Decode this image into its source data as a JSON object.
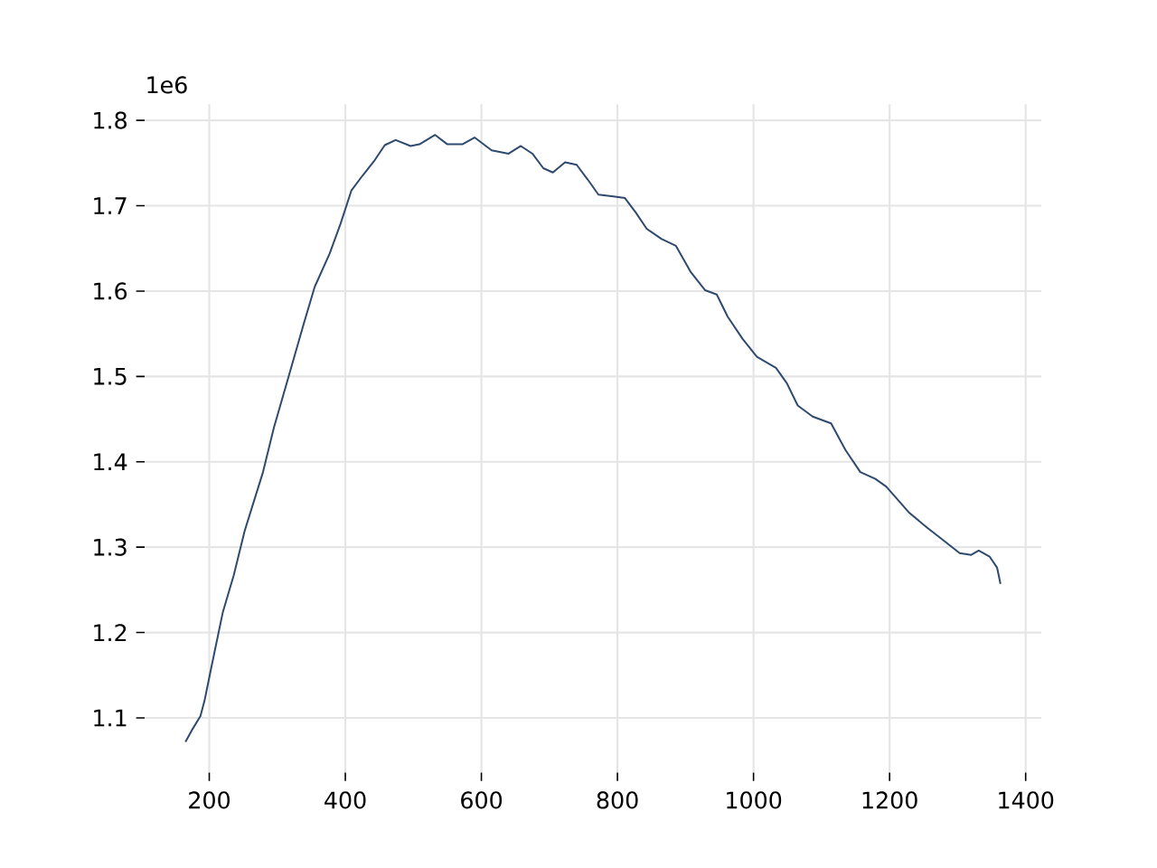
{
  "chart_data": {
    "type": "line",
    "annotations": [
      "1e6"
    ],
    "x": [
      165,
      174,
      187,
      193,
      203,
      220,
      236,
      252,
      279,
      295,
      317,
      339,
      355,
      377,
      393,
      409,
      425,
      442,
      458,
      474,
      496,
      509,
      532,
      550,
      572,
      590,
      615,
      640,
      658,
      675,
      691,
      705,
      723,
      740,
      756,
      772,
      794,
      811,
      827,
      843,
      865,
      886,
      908,
      929,
      946,
      962,
      984,
      1005,
      1033,
      1049,
      1065,
      1087,
      1114,
      1135,
      1157,
      1179,
      1195,
      1228,
      1255,
      1276,
      1303,
      1320,
      1331,
      1347,
      1358,
      1363
    ],
    "series": [
      {
        "color": "#2e4a6e",
        "values": [
          1.072,
          1.085,
          1.102,
          1.12,
          1.159,
          1.224,
          1.267,
          1.319,
          1.388,
          1.44,
          1.501,
          1.562,
          1.605,
          1.644,
          1.679,
          1.718,
          1.735,
          1.752,
          1.771,
          1.777,
          1.77,
          1.772,
          1.783,
          1.772,
          1.772,
          1.78,
          1.765,
          1.761,
          1.77,
          1.761,
          1.744,
          1.739,
          1.751,
          1.748,
          1.731,
          1.713,
          1.711,
          1.709,
          1.692,
          1.673,
          1.661,
          1.653,
          1.622,
          1.601,
          1.596,
          1.57,
          1.544,
          1.523,
          1.51,
          1.492,
          1.466,
          1.453,
          1.445,
          1.414,
          1.388,
          1.38,
          1.371,
          1.341,
          1.323,
          1.31,
          1.293,
          1.291,
          1.296,
          1.289,
          1.276,
          1.257
        ]
      }
    ],
    "xlim": [
      105,
      1423
    ],
    "ylim": [
      1.036,
      1.819
    ],
    "xticks": [
      200,
      400,
      600,
      800,
      1000,
      1200,
      1400
    ],
    "yticks": [
      1.1,
      1.2,
      1.3,
      1.4,
      1.5,
      1.6,
      1.7,
      1.8
    ],
    "grid": true,
    "marker": "none",
    "line_style": "solid"
  }
}
